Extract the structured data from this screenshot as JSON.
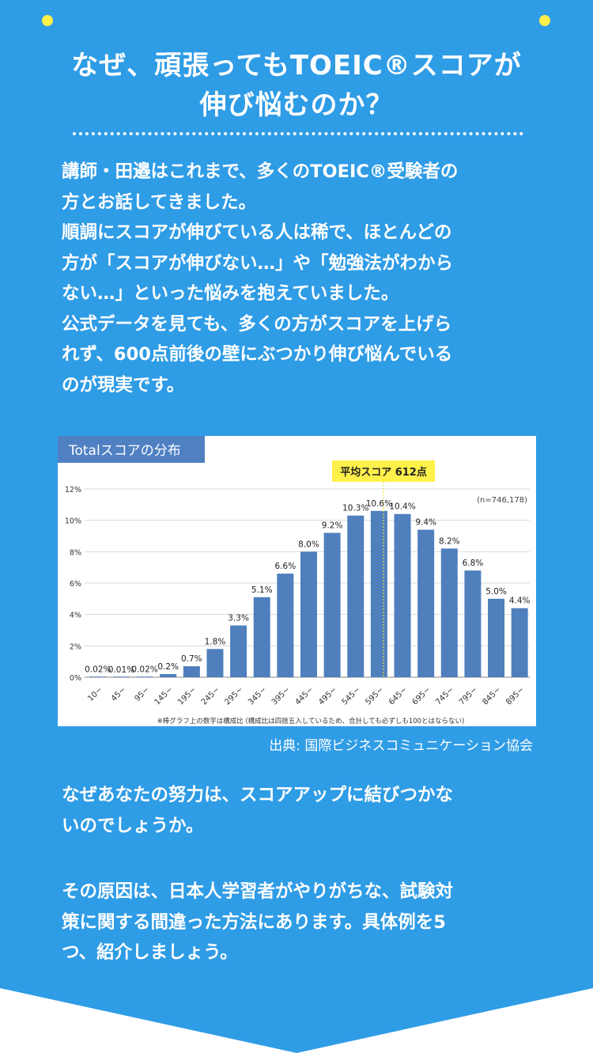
{
  "headline": {
    "line1": "なぜ、頑張ってもTOEIC®スコアが",
    "line2": "伸び悩むのか？"
  },
  "intro": [
    "講師・田邉はこれまで、多くのTOEIC®受験者の",
    "方とお話してきました。",
    "順調にスコアが伸びている人は稀で、ほとんどの",
    "方が「スコアが伸びない…」や「勉強法がわから",
    "ない…」といった悩みを抱えていました。",
    "公式データを見ても、多くの方がスコアを上げら",
    "れず、600点前後の壁にぶつかり伸び悩んでいる",
    "のが現実です。"
  ],
  "question": [
    "なぜあなたの努力は、スコアアップに結びつかな",
    "いのでしょうか。"
  ],
  "cause": [
    "その原因は、日本人学習者がやりがちな、試験対",
    "策に関する間違った方法にあります。具体例を5",
    "つ、紹介しましょう。"
  ],
  "source_text": "出典: 国際ビジネスコミュニケーション協会",
  "colors": {
    "panel": "#2f9ce6",
    "bar": "#4f7fbd",
    "dot": "#fff04a",
    "badge": "#fff04a"
  },
  "chart_data": {
    "type": "bar",
    "title": "Totalスコアの分布",
    "average_label": "平均スコア 612点",
    "sample_label": "(n=746,178)",
    "note": "※棒グラフ上の数字は構成比 (構成比は四捨五入しているため、合計しても必ずしも100とはならない)",
    "categories": [
      "10~",
      "45~",
      "95~",
      "145~",
      "195~",
      "245~",
      "295~",
      "345~",
      "395~",
      "445~",
      "495~",
      "545~",
      "595~",
      "645~",
      "695~",
      "745~",
      "795~",
      "845~",
      "895~"
    ],
    "values": [
      0.02,
      0.01,
      0.02,
      0.2,
      0.7,
      1.8,
      3.3,
      5.1,
      6.6,
      8.0,
      9.2,
      10.3,
      10.6,
      10.4,
      9.4,
      8.2,
      6.8,
      5.0,
      4.4
    ],
    "value_labels": [
      "0.02%",
      "0.01%",
      "0.02%",
      "0.2%",
      "0.7%",
      "1.8%",
      "3.3%",
      "5.1%",
      "6.6%",
      "8.0%",
      "9.2%",
      "10.3%",
      "10.6%",
      "10.4%",
      "9.4%",
      "8.2%",
      "6.8%",
      "5.0%",
      "4.4%"
    ],
    "yticks": [
      "0%",
      "2%",
      "4%",
      "6%",
      "8%",
      "10%",
      "12%"
    ],
    "ylim": [
      0,
      12
    ],
    "grid": true,
    "average_score": 612
  }
}
